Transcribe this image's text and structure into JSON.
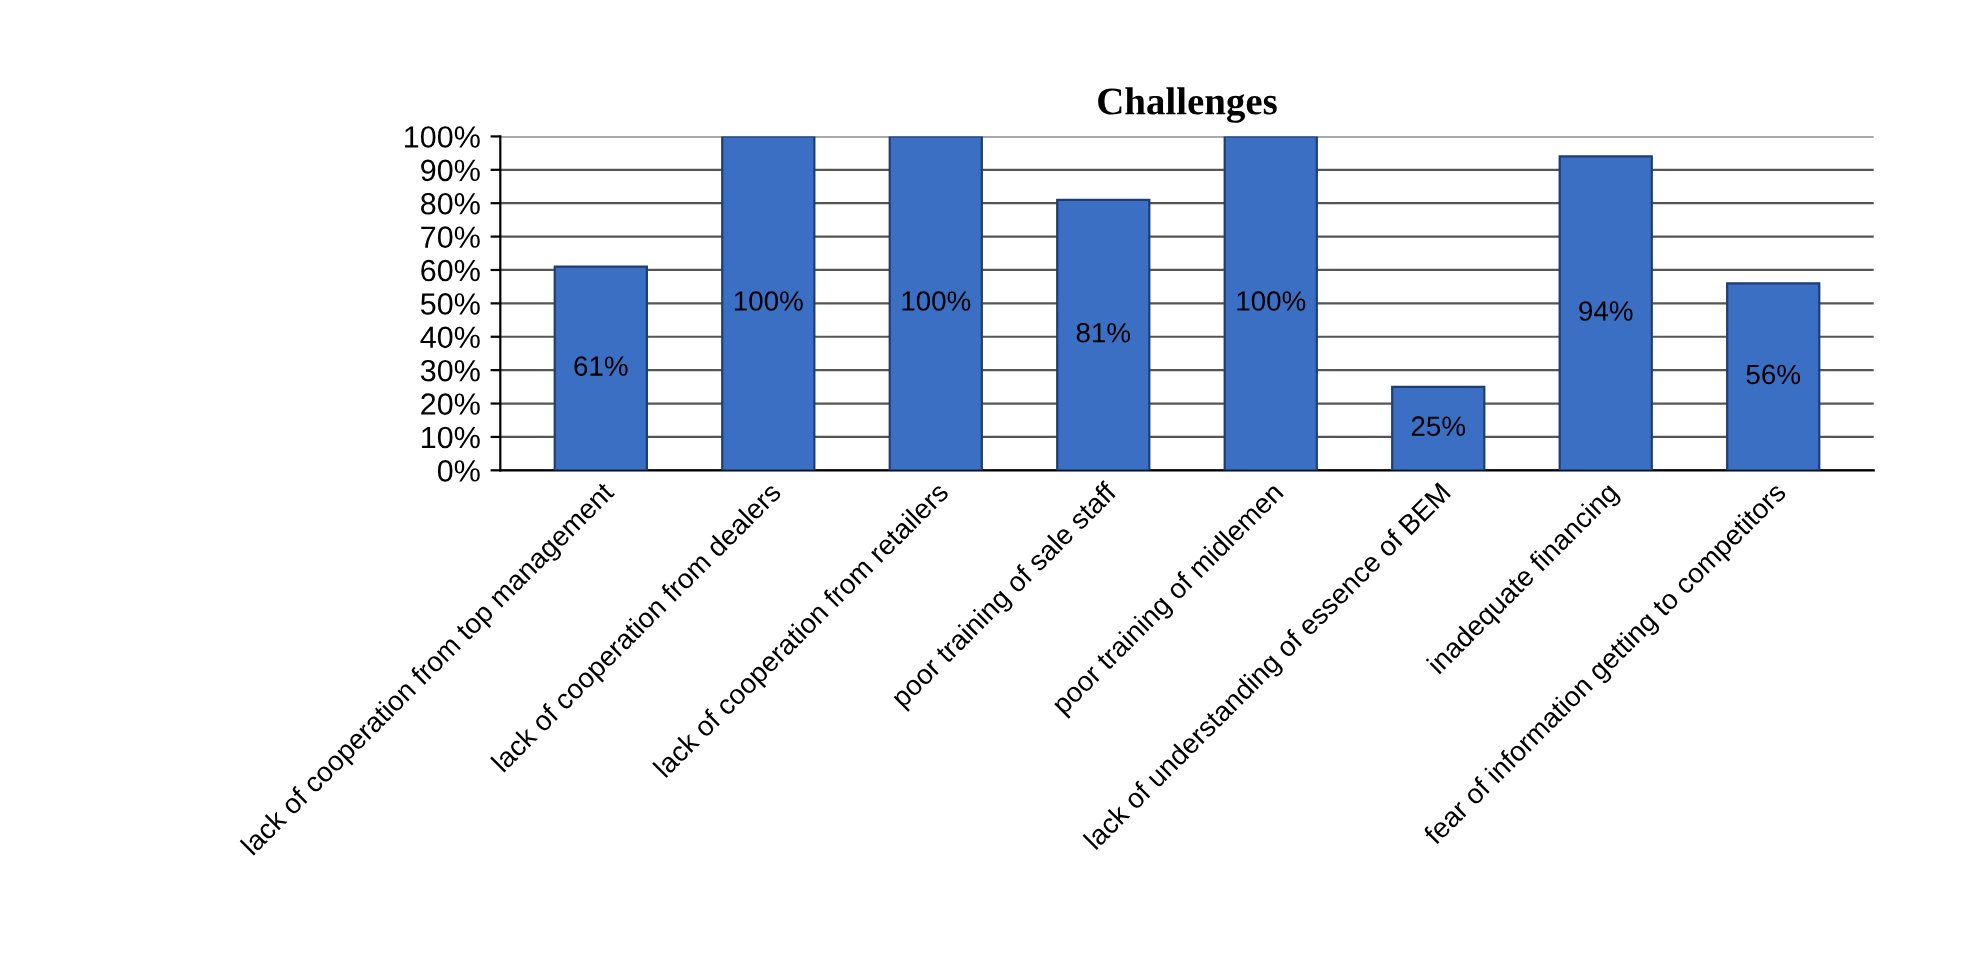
{
  "chart_data": {
    "type": "bar",
    "title": "Challenges",
    "categories": [
      "lack of cooperation from top management",
      "lack of cooperation from dealers",
      "lack of cooperation from retailers",
      "poor training of sale staff",
      "poor training of midlemen",
      "lack of understanding of essence of BEM",
      "inadequate financing",
      "fear of information getting to competitors"
    ],
    "values": [
      61,
      100,
      100,
      81,
      100,
      25,
      94,
      56
    ],
    "value_labels": [
      "61%",
      "100%",
      "100%",
      "81%",
      "100%",
      "25%",
      "94%",
      "56%"
    ],
    "color": "#3a6fc4",
    "ylim": [
      0,
      100
    ],
    "yticks": [
      {
        "value": 0,
        "label": "0%"
      },
      {
        "value": 10,
        "label": "10%"
      },
      {
        "value": 20,
        "label": "20%"
      },
      {
        "value": 30,
        "label": "30%"
      },
      {
        "value": 40,
        "label": "40%"
      },
      {
        "value": 50,
        "label": "50%"
      },
      {
        "value": 60,
        "label": "60%"
      },
      {
        "value": 70,
        "label": "70%"
      },
      {
        "value": 80,
        "label": "80%"
      },
      {
        "value": 90,
        "label": "90%"
      },
      {
        "value": 100,
        "label": "100%"
      }
    ],
    "grid": "y"
  }
}
